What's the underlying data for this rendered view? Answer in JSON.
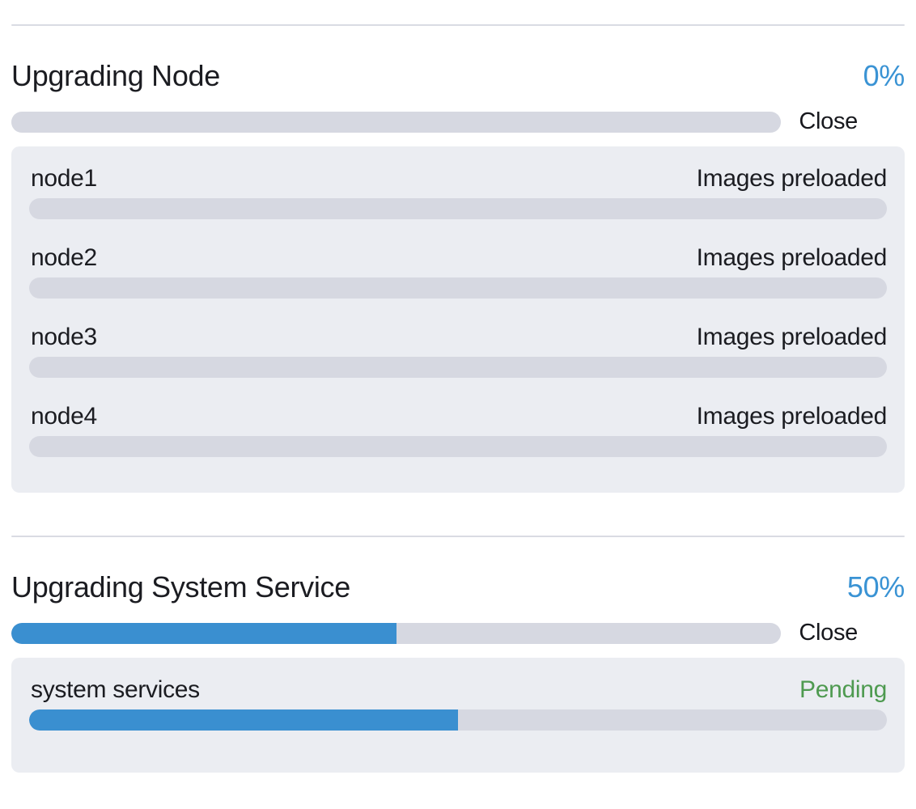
{
  "colors": {
    "accent_blue": "#3a8fd0",
    "percent_blue": "#3a93d4",
    "success_green": "#4e9a50",
    "text_dark": "#1b1c21",
    "track_gray": "#d6d8e1",
    "panel_bg": "#ebedf2",
    "divider": "#d9dbe3"
  },
  "sections": [
    {
      "title": "Upgrading Node",
      "percent_label": "0%",
      "percent_value": 0,
      "close_label": "Close",
      "rows": [
        {
          "label": "node1",
          "status": "Images preloaded",
          "status_color": "#1b1c21",
          "progress": 0
        },
        {
          "label": "node2",
          "status": "Images preloaded",
          "status_color": "#1b1c21",
          "progress": 0
        },
        {
          "label": "node3",
          "status": "Images preloaded",
          "status_color": "#1b1c21",
          "progress": 0
        },
        {
          "label": "node4",
          "status": "Images preloaded",
          "status_color": "#1b1c21",
          "progress": 0
        }
      ]
    },
    {
      "title": "Upgrading System Service",
      "percent_label": "50%",
      "percent_value": 50,
      "close_label": "Close",
      "rows": [
        {
          "label": "system services",
          "status": "Pending",
          "status_color": "#4e9a50",
          "progress": 50
        }
      ]
    }
  ]
}
